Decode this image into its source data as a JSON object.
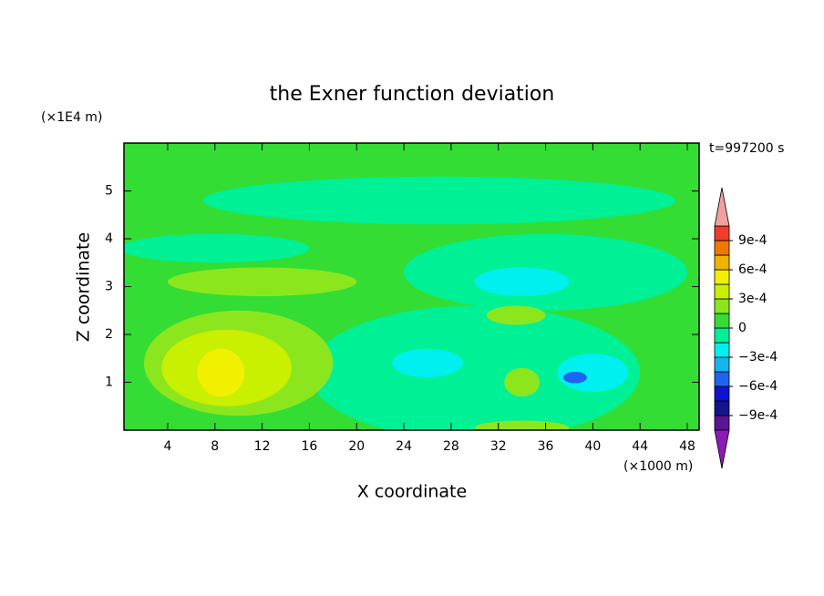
{
  "chart_data": {
    "type": "contour",
    "title": "the Exner function deviation",
    "x_label": "X coordinate",
    "y_label": "Z coordinate",
    "x_unit": "(×1000 m)",
    "y_unit": "(×1E4 m)",
    "annotation": "t=997200 s",
    "xlim": [
      0.3,
      49
    ],
    "xticks": [
      4,
      8,
      12,
      16,
      20,
      24,
      28,
      32,
      36,
      40,
      44,
      48
    ],
    "ylim": [
      0,
      6
    ],
    "yticks": [
      1,
      2,
      3,
      4,
      5
    ],
    "background_value": 5e-05,
    "regions": [
      {
        "x": 30,
        "z": 1.2,
        "rx": 14,
        "rz": 1.4,
        "value": -7e-05
      },
      {
        "x": 27,
        "z": 4.8,
        "rx": 20,
        "rz": 0.5,
        "value": -7e-05
      },
      {
        "x": 36,
        "z": 3.3,
        "rx": 12,
        "rz": 0.8,
        "value": -7e-05
      },
      {
        "x": 8,
        "z": 3.8,
        "rx": 8,
        "rz": 0.3,
        "value": -7e-05
      },
      {
        "x": 34,
        "z": 3.1,
        "rx": 4,
        "rz": 0.3,
        "value": -0.0002
      },
      {
        "x": 26,
        "z": 1.4,
        "rx": 3,
        "rz": 0.3,
        "value": -0.0002
      },
      {
        "x": 40,
        "z": 1.2,
        "rx": 3,
        "rz": 0.4,
        "value": -0.0002
      },
      {
        "x": 38.5,
        "z": 1.1,
        "rx": 1,
        "rz": 0.12,
        "value": -0.0005
      },
      {
        "x": 10,
        "z": 1.4,
        "rx": 8,
        "rz": 1.1,
        "value": 0.0002
      },
      {
        "x": 12,
        "z": 3.1,
        "rx": 8,
        "rz": 0.3,
        "value": 0.0002
      },
      {
        "x": 33.5,
        "z": 2.4,
        "rx": 2.5,
        "rz": 0.2,
        "value": 0.0002
      },
      {
        "x": 34,
        "z": 0.05,
        "rx": 4,
        "rz": 0.15,
        "value": 0.0002
      },
      {
        "x": 34,
        "z": 1.0,
        "rx": 1.5,
        "rz": 0.3,
        "value": 0.0002
      },
      {
        "x": 9,
        "z": 1.3,
        "rx": 5.5,
        "rz": 0.8,
        "value": 0.00035
      },
      {
        "x": 8.5,
        "z": 1.2,
        "rx": 2,
        "rz": 0.5,
        "value": 0.0005
      }
    ],
    "colorbar": {
      "bounds": [
        -0.00105,
        -0.0009,
        -0.00075,
        -0.0006,
        -0.00045,
        -0.0003,
        -0.00015,
        0,
        0.00015,
        0.0003,
        0.00045,
        0.0006,
        0.00075,
        0.0009,
        0.00105
      ],
      "colors": [
        "#5a1496",
        "#14148c",
        "#0a14d2",
        "#1e64f0",
        "#14b4f0",
        "#00f0f0",
        "#00f096",
        "#33dd33",
        "#8ce61e",
        "#c8f000",
        "#f0f000",
        "#f0b400",
        "#f07800",
        "#f03c28"
      ],
      "under_color": "#8c1ab4",
      "over_color": "#f0a0a0",
      "ticks": [
        {
          "value": 0.0009,
          "label": "9e-4"
        },
        {
          "value": 0.0006,
          "label": "6e-4"
        },
        {
          "value": 0.0003,
          "label": "3e-4"
        },
        0,
        {
          "value": -0.0003,
          "label": "−3e-4"
        },
        {
          "value": -0.0006,
          "label": "−6e-4"
        },
        {
          "value": -0.0009,
          "label": "−9e-4"
        }
      ]
    }
  }
}
